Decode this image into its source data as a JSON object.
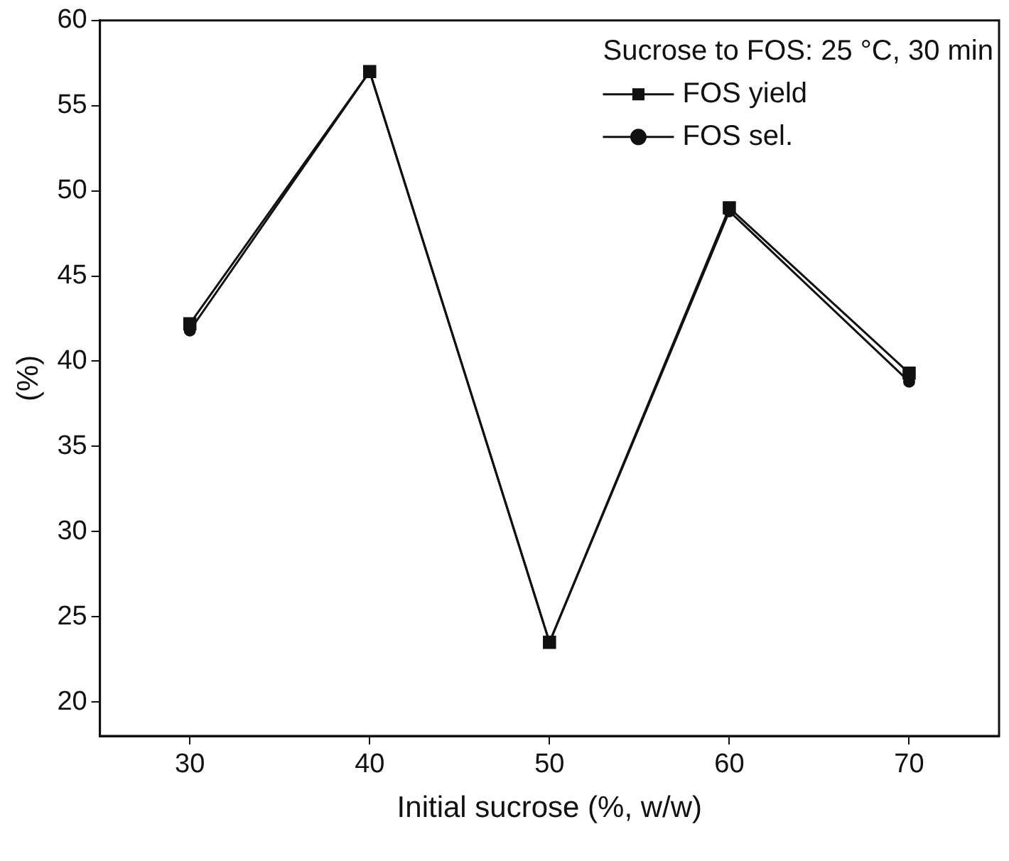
{
  "chart_data": {
    "type": "line",
    "xlabel": "Initial sucrose (%, w/w)",
    "ylabel": "(%)",
    "legend_title": "Sucrose to FOS: 25 °C, 30 min",
    "x": [
      30,
      40,
      50,
      60,
      70
    ],
    "series": [
      {
        "name": "FOS yield",
        "color": "#111111",
        "marker": "square",
        "values": [
          42.2,
          57,
          23.5,
          49,
          39.3
        ]
      },
      {
        "name": "FOS sel.",
        "color": "#111111",
        "marker": "circle",
        "values": [
          41.8,
          57,
          23.5,
          48.8,
          38.8
        ]
      }
    ],
    "xlim": [
      25,
      75
    ],
    "xticks": [
      30,
      40,
      50,
      60,
      70
    ],
    "ylim": [
      18,
      60
    ],
    "yticks": [
      20,
      25,
      30,
      35,
      40,
      45,
      50,
      55,
      60
    ],
    "grid": false,
    "legend": "top right",
    "line_style": "solid"
  }
}
